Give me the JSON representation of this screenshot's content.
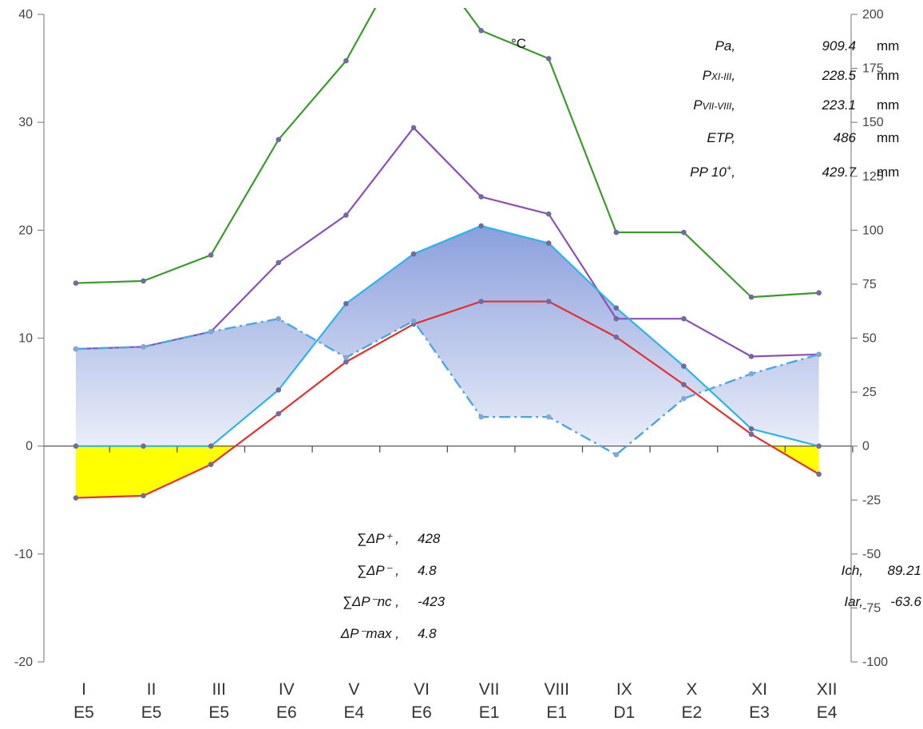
{
  "chart_data": {
    "type": "line",
    "categories": [
      "I",
      "II",
      "III",
      "IV",
      "V",
      "VI",
      "VII",
      "VIII",
      "IX",
      "X",
      "XI",
      "XII"
    ],
    "category_codes": [
      "E5",
      "E5",
      "E5",
      "E6",
      "E4",
      "E6",
      "E1",
      "E1",
      "D1",
      "E2",
      "E3",
      "E4"
    ],
    "left_axis": {
      "ylim": [
        -20,
        40
      ],
      "ticks": [
        "-20",
        "-10",
        "0",
        "10",
        "20",
        "30",
        "40"
      ]
    },
    "right_axis": {
      "ylim": [
        -100,
        200
      ],
      "ticks": [
        "-100",
        "-75",
        "-50",
        "-25",
        "0",
        "25",
        "50",
        "75",
        "100",
        "125",
        "150",
        "175",
        "200"
      ]
    },
    "series": [
      {
        "key": "green",
        "color": "#3a9a2c",
        "values": [
          15.1,
          15.3,
          17.7,
          28.4,
          35.7,
          47,
          38.5,
          35.9,
          19.8,
          19.8,
          13.8,
          14.2
        ]
      },
      {
        "key": "purple",
        "color": "#8e4fb5",
        "values": [
          9.0,
          9.2,
          10.6,
          17.0,
          21.4,
          29.5,
          23.1,
          21.5,
          11.8,
          11.8,
          8.3,
          8.5
        ]
      },
      {
        "key": "cyan",
        "color": "#2bb4ea",
        "values": [
          0,
          0,
          0,
          5.2,
          13.2,
          17.8,
          20.4,
          18.8,
          12.8,
          7.4,
          1.6,
          0
        ]
      },
      {
        "key": "red",
        "color": "#e52f2f",
        "values": [
          -4.8,
          -4.6,
          -1.7,
          3.0,
          7.8,
          11.3,
          13.4,
          13.4,
          10.1,
          5.7,
          1.1,
          -2.6
        ]
      },
      {
        "key": "dashdot",
        "color": "#49a9e0",
        "values": [
          9.0,
          9.2,
          10.6,
          11.8,
          8.2,
          11.6,
          2.7,
          2.7,
          -0.8,
          4.4,
          6.7,
          8.5
        ]
      }
    ],
    "fills": {
      "surplus": "#8fa3dd",
      "deficit": "#ffff00"
    },
    "unit_label": "°C"
  },
  "notes_top": [
    {
      "label": "Pa,",
      "value": "909.4",
      "unit": "mm"
    },
    {
      "label": "P",
      "sub": "XI-III",
      "suffix": ",",
      "value": "228.5",
      "unit": "mm"
    },
    {
      "label": "P",
      "sub": "VII-VIII",
      "suffix": ",",
      "value": "223.1",
      "unit": "mm"
    },
    {
      "label": "ETP,",
      "value": "486",
      "unit": "mm"
    },
    {
      "label": "PP 10",
      "sup": "+",
      "suffix": ",",
      "value": "429.7",
      "unit": "mm"
    }
  ],
  "notes_bottom": [
    {
      "label": "∑ΔP⁺ ,",
      "value": "428"
    },
    {
      "label": "∑ΔP⁻ ,",
      "value": "4.8"
    },
    {
      "label": "∑ΔP⁻nc ,",
      "value": "-423"
    },
    {
      "label": "ΔP⁻max ,",
      "value": "4.8"
    }
  ],
  "notes_right": [
    {
      "label": "Ich,",
      "value": "89.21"
    },
    {
      "label": "Iar,",
      "value": "-63.6"
    }
  ]
}
